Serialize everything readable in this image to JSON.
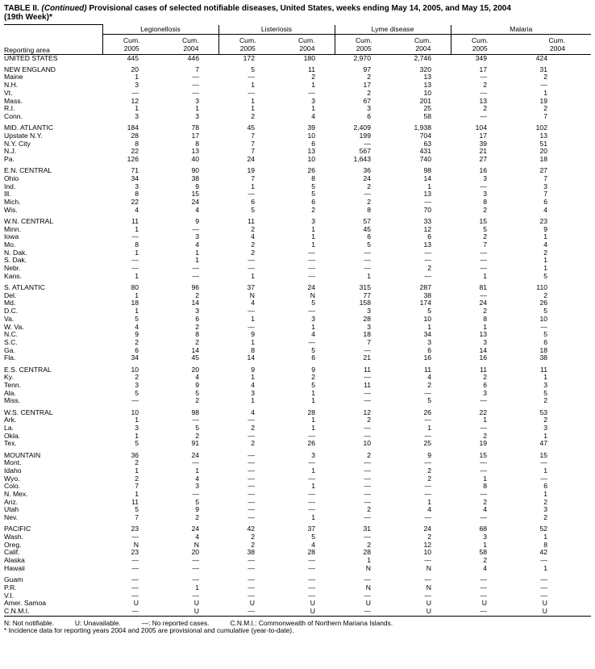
{
  "title": {
    "prefix": "TABLE II. ",
    "continued": "(Continued)",
    "text": " Provisional cases of selected notifiable diseases, United States, weeks ending May 14, 2005, and May 15, 2004",
    "line2": "(19th Week)*"
  },
  "header": {
    "reporting_area": "Reporting area",
    "diseases": [
      "Legionellosis",
      "Listeriosis",
      "Lyme disease",
      "Malaria"
    ],
    "cum": "Cum.",
    "years": [
      "2005",
      "2004"
    ]
  },
  "table": {
    "groups": [
      [
        [
          "UNITED STATES",
          "445",
          "446",
          "172",
          "180",
          "2,970",
          "2,746",
          "349",
          "424"
        ]
      ],
      [
        [
          "NEW ENGLAND",
          "20",
          "7",
          "5",
          "11",
          "97",
          "320",
          "17",
          "31"
        ],
        [
          "Maine",
          "1",
          "—",
          "—",
          "2",
          "2",
          "13",
          "—",
          "2"
        ],
        [
          "N.H.",
          "3",
          "—",
          "1",
          "1",
          "17",
          "13",
          "2",
          "—"
        ],
        [
          "Vt.",
          "—",
          "—",
          "—",
          "—",
          "2",
          "10",
          "—",
          "1"
        ],
        [
          "Mass.",
          "12",
          "3",
          "1",
          "3",
          "67",
          "201",
          "13",
          "19"
        ],
        [
          "R.I.",
          "1",
          "1",
          "1",
          "1",
          "3",
          "25",
          "2",
          "2"
        ],
        [
          "Conn.",
          "3",
          "3",
          "2",
          "4",
          "6",
          "58",
          "—",
          "7"
        ]
      ],
      [
        [
          "MID. ATLANTIC",
          "184",
          "78",
          "45",
          "39",
          "2,409",
          "1,938",
          "104",
          "102"
        ],
        [
          "Upstate N.Y.",
          "28",
          "17",
          "7",
          "10",
          "199",
          "704",
          "17",
          "13"
        ],
        [
          "N.Y. City",
          "8",
          "8",
          "7",
          "6",
          "—",
          "63",
          "39",
          "51"
        ],
        [
          "N.J.",
          "22",
          "13",
          "7",
          "13",
          "567",
          "431",
          "21",
          "20"
        ],
        [
          "Pa.",
          "126",
          "40",
          "24",
          "10",
          "1,643",
          "740",
          "27",
          "18"
        ]
      ],
      [
        [
          "E.N. CENTRAL",
          "71",
          "90",
          "19",
          "26",
          "36",
          "98",
          "16",
          "27"
        ],
        [
          "Ohio",
          "34",
          "38",
          "7",
          "8",
          "24",
          "14",
          "3",
          "7"
        ],
        [
          "Ind.",
          "3",
          "9",
          "1",
          "5",
          "2",
          "1",
          "—",
          "3"
        ],
        [
          "Ill.",
          "8",
          "15",
          "—",
          "5",
          "—",
          "13",
          "3",
          "7"
        ],
        [
          "Mich.",
          "22",
          "24",
          "6",
          "6",
          "2",
          "—",
          "8",
          "6"
        ],
        [
          "Wis.",
          "4",
          "4",
          "5",
          "2",
          "8",
          "70",
          "2",
          "4"
        ]
      ],
      [
        [
          "W.N. CENTRAL",
          "11",
          "9",
          "11",
          "3",
          "57",
          "33",
          "15",
          "23"
        ],
        [
          "Minn.",
          "1",
          "—",
          "2",
          "1",
          "45",
          "12",
          "5",
          "9"
        ],
        [
          "Iowa",
          "—",
          "3",
          "4",
          "1",
          "6",
          "6",
          "2",
          "1"
        ],
        [
          "Mo.",
          "8",
          "4",
          "2",
          "1",
          "5",
          "13",
          "7",
          "4"
        ],
        [
          "N. Dak.",
          "1",
          "1",
          "2",
          "—",
          "—",
          "—",
          "—",
          "2"
        ],
        [
          "S. Dak.",
          "—",
          "1",
          "—",
          "—",
          "—",
          "—",
          "—",
          "1"
        ],
        [
          "Nebr.",
          "—",
          "—",
          "—",
          "—",
          "—",
          "2",
          "—",
          "1"
        ],
        [
          "Kans.",
          "1",
          "—",
          "1",
          "—",
          "1",
          "—",
          "1",
          "5"
        ]
      ],
      [
        [
          "S. ATLANTIC",
          "80",
          "96",
          "37",
          "24",
          "315",
          "287",
          "81",
          "110"
        ],
        [
          "Del.",
          "1",
          "2",
          "N",
          "N",
          "77",
          "38",
          "—",
          "2"
        ],
        [
          "Md.",
          "18",
          "14",
          "4",
          "5",
          "158",
          "174",
          "24",
          "26"
        ],
        [
          "D.C.",
          "1",
          "3",
          "—",
          "—",
          "3",
          "5",
          "2",
          "5"
        ],
        [
          "Va.",
          "5",
          "6",
          "1",
          "3",
          "28",
          "10",
          "8",
          "10"
        ],
        [
          "W. Va.",
          "4",
          "2",
          "—",
          "1",
          "3",
          "1",
          "1",
          "—"
        ],
        [
          "N.C.",
          "9",
          "8",
          "9",
          "4",
          "18",
          "34",
          "13",
          "5"
        ],
        [
          "S.C.",
          "2",
          "2",
          "1",
          "—",
          "7",
          "3",
          "3",
          "6"
        ],
        [
          "Ga.",
          "6",
          "14",
          "8",
          "5",
          "—",
          "6",
          "14",
          "18"
        ],
        [
          "Fla.",
          "34",
          "45",
          "14",
          "6",
          "21",
          "16",
          "16",
          "38"
        ]
      ],
      [
        [
          "E.S. CENTRAL",
          "10",
          "20",
          "9",
          "9",
          "11",
          "11",
          "11",
          "11"
        ],
        [
          "Ky.",
          "2",
          "4",
          "1",
          "2",
          "—",
          "4",
          "2",
          "1"
        ],
        [
          "Tenn.",
          "3",
          "9",
          "4",
          "5",
          "11",
          "2",
          "6",
          "3"
        ],
        [
          "Ala.",
          "5",
          "5",
          "3",
          "1",
          "—",
          "—",
          "3",
          "5"
        ],
        [
          "Miss.",
          "—",
          "2",
          "1",
          "1",
          "—",
          "5",
          "—",
          "2"
        ]
      ],
      [
        [
          "W.S. CENTRAL",
          "10",
          "98",
          "4",
          "28",
          "12",
          "26",
          "22",
          "53"
        ],
        [
          "Ark.",
          "1",
          "—",
          "—",
          "1",
          "2",
          "—",
          "1",
          "2"
        ],
        [
          "La.",
          "3",
          "5",
          "2",
          "1",
          "—",
          "1",
          "—",
          "3"
        ],
        [
          "Okla.",
          "1",
          "2",
          "—",
          "—",
          "—",
          "—",
          "2",
          "1"
        ],
        [
          "Tex.",
          "5",
          "91",
          "2",
          "26",
          "10",
          "25",
          "19",
          "47"
        ]
      ],
      [
        [
          "MOUNTAIN",
          "36",
          "24",
          "—",
          "3",
          "2",
          "9",
          "15",
          "15"
        ],
        [
          "Mont.",
          "2",
          "—",
          "—",
          "—",
          "—",
          "—",
          "—",
          "—"
        ],
        [
          "Idaho",
          "1",
          "1",
          "—",
          "1",
          "—",
          "2",
          "—",
          "1"
        ],
        [
          "Wyo.",
          "2",
          "4",
          "—",
          "—",
          "—",
          "2",
          "1",
          "—"
        ],
        [
          "Colo.",
          "7",
          "3",
          "—",
          "1",
          "—",
          "—",
          "8",
          "6"
        ],
        [
          "N. Mex.",
          "1",
          "—",
          "—",
          "—",
          "—",
          "—",
          "—",
          "1"
        ],
        [
          "Ariz.",
          "11",
          "5",
          "—",
          "—",
          "—",
          "1",
          "2",
          "2"
        ],
        [
          "Utah",
          "5",
          "9",
          "—",
          "—",
          "2",
          "4",
          "4",
          "3"
        ],
        [
          "Nev.",
          "7",
          "2",
          "—",
          "1",
          "—",
          "—",
          "—",
          "2"
        ]
      ],
      [
        [
          "PACIFIC",
          "23",
          "24",
          "42",
          "37",
          "31",
          "24",
          "68",
          "52"
        ],
        [
          "Wash.",
          "—",
          "4",
          "2",
          "5",
          "—",
          "2",
          "3",
          "1"
        ],
        [
          "Oreg.",
          "N",
          "N",
          "2",
          "4",
          "2",
          "12",
          "1",
          "8"
        ],
        [
          "Calif.",
          "23",
          "20",
          "38",
          "28",
          "28",
          "10",
          "58",
          "42"
        ],
        [
          "Alaska",
          "—",
          "—",
          "—",
          "—",
          "1",
          "—",
          "2",
          "—"
        ],
        [
          "Hawaii",
          "—",
          "—",
          "—",
          "—",
          "N",
          "N",
          "4",
          "1"
        ]
      ],
      [
        [
          "Guam",
          "—",
          "—",
          "—",
          "—",
          "—",
          "—",
          "—",
          "—"
        ],
        [
          "P.R.",
          "—",
          "1",
          "—",
          "—",
          "N",
          "N",
          "—",
          "—"
        ],
        [
          "V.I.",
          "—",
          "—",
          "—",
          "—",
          "—",
          "—",
          "—",
          "—"
        ],
        [
          "Amer. Samoa",
          "U",
          "U",
          "U",
          "U",
          "U",
          "U",
          "U",
          "U"
        ],
        [
          "C.N.M.I.",
          "—",
          "U",
          "—",
          "U",
          "—",
          "U",
          "—",
          "U"
        ]
      ]
    ]
  },
  "footnotes": {
    "legend": [
      "N: Not notifiable.",
      "U: Unavailable.",
      "—: No reported cases.",
      "C.N.M.I.: Commonwealth of Northern Mariana Islands."
    ],
    "note": "* Incidence data for reporting years 2004 and 2005 are provisional and cumulative (year-to-date)."
  }
}
